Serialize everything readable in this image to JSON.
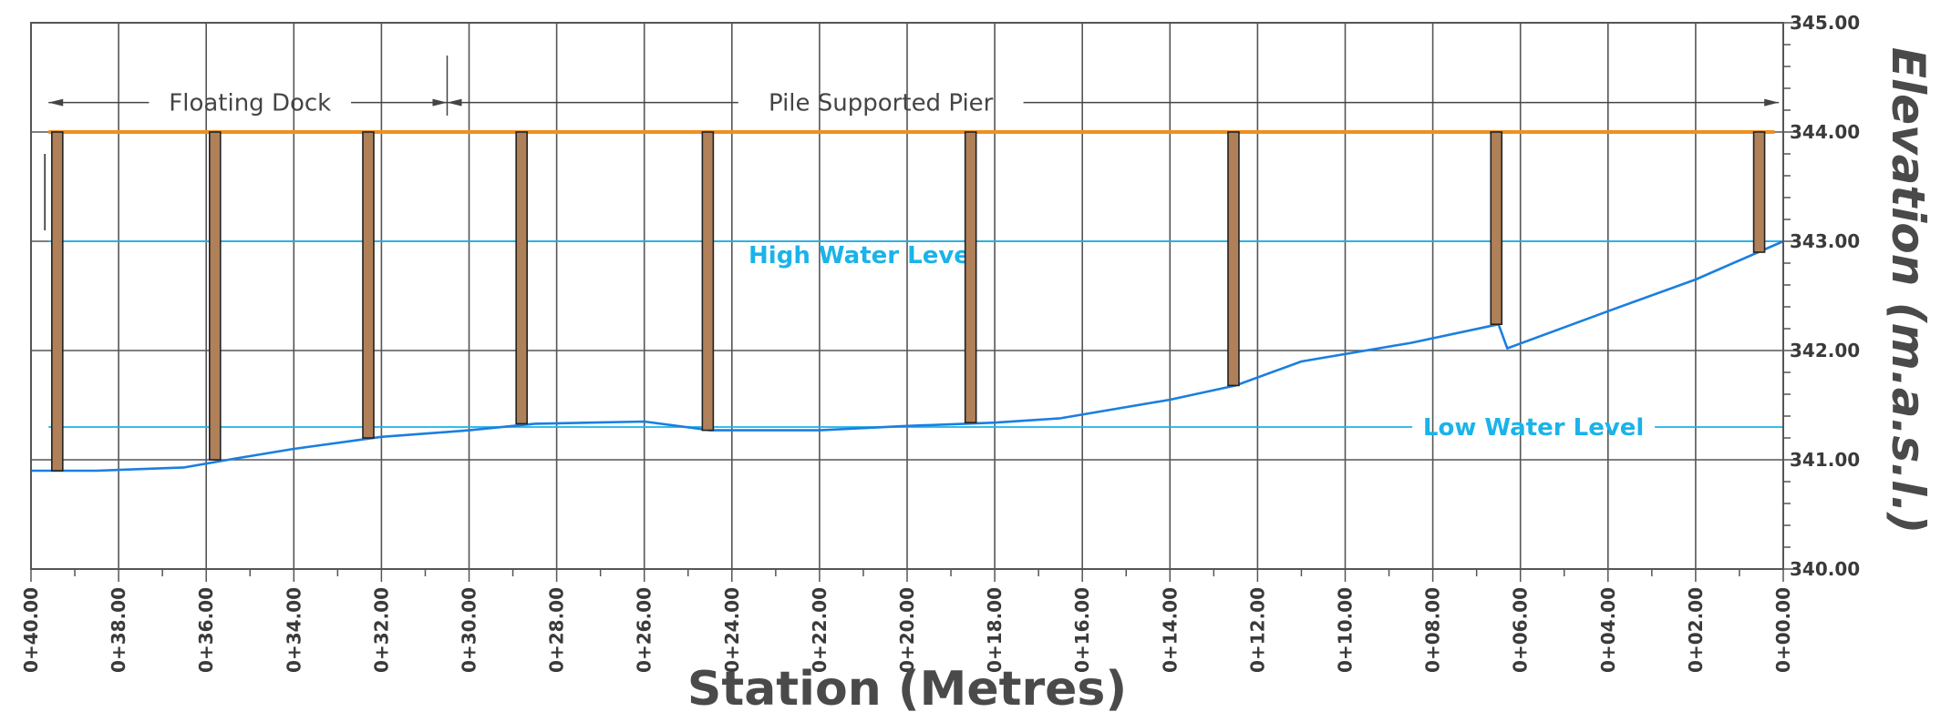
{
  "chart_data": {
    "type": "line",
    "xlabel": "Station (Metres)",
    "ylabel": "Elevation (m.a.s.l.)",
    "xlim": [
      40,
      0
    ],
    "ylim": [
      340,
      345
    ],
    "x_ticks": [
      40,
      38,
      36,
      34,
      32,
      30,
      28,
      26,
      24,
      22,
      20,
      18,
      16,
      14,
      12,
      10,
      8,
      6,
      4,
      2,
      0
    ],
    "x_tick_labels": [
      "0+40.00",
      "0+38.00",
      "0+36.00",
      "0+34.00",
      "0+32.00",
      "0+30.00",
      "0+28.00",
      "0+26.00",
      "0+24.00",
      "0+22.00",
      "0+20.00",
      "0+18.00",
      "0+16.00",
      "0+14.00",
      "0+12.00",
      "0+10.00",
      "0+08.00",
      "0+06.00",
      "0+04.00",
      "0+02.00",
      "0+00.00"
    ],
    "y_ticks": [
      340,
      341,
      342,
      343,
      344,
      345
    ],
    "y_tick_labels": [
      "340.00",
      "341.00",
      "342.00",
      "343.00",
      "344.00",
      "345.00"
    ],
    "grid": true,
    "ground_profile": {
      "color": "#1a7fe0",
      "points": [
        [
          40,
          340.9
        ],
        [
          38.5,
          340.9
        ],
        [
          36.5,
          340.93
        ],
        [
          35.5,
          341.0
        ],
        [
          34,
          341.1
        ],
        [
          32,
          341.21
        ],
        [
          30,
          341.27
        ],
        [
          28.5,
          341.33
        ],
        [
          26,
          341.35
        ],
        [
          24.5,
          341.27
        ],
        [
          22,
          341.27
        ],
        [
          20,
          341.31
        ],
        [
          18,
          341.34
        ],
        [
          16.5,
          341.38
        ],
        [
          14,
          341.55
        ],
        [
          12.5,
          341.68
        ],
        [
          11,
          341.9
        ],
        [
          8.5,
          342.07
        ],
        [
          6.5,
          342.24
        ],
        [
          6.3,
          342.02
        ],
        [
          4,
          342.36
        ],
        [
          2,
          342.65
        ],
        [
          0,
          343.0
        ]
      ]
    },
    "deck": {
      "elevation": 344.0,
      "x_start": 39.6,
      "x_end": 0.2,
      "color": "#f0901e"
    },
    "piles": [
      {
        "x": 39.4,
        "bottom": 340.9
      },
      {
        "x": 35.8,
        "bottom": 341.0
      },
      {
        "x": 32.3,
        "bottom": 341.2
      },
      {
        "x": 28.8,
        "bottom": 341.33
      },
      {
        "x": 24.55,
        "bottom": 341.27
      },
      {
        "x": 18.55,
        "bottom": 341.34
      },
      {
        "x": 12.55,
        "bottom": 341.68
      },
      {
        "x": 6.55,
        "bottom": 342.24
      },
      {
        "x": 0.55,
        "bottom": 342.9
      }
    ],
    "pile_top": 344.0,
    "pile_color": "#b08058",
    "water_levels": [
      {
        "label": "High Water Level",
        "elevation": 343.0,
        "label_x": 21,
        "color": "#1ab3ea"
      },
      {
        "label": "Low Water Level",
        "elevation": 341.3,
        "label_x": 5.7,
        "color": "#1ab3ea"
      }
    ],
    "annotations": [
      {
        "label": "Floating Dock",
        "x_start": 39.6,
        "x_end": 30.5,
        "elevation": 344.27,
        "label_x": 35
      },
      {
        "label": "Pile Supported Pier",
        "x_start": 30.5,
        "x_end": 0.1,
        "elevation": 344.27,
        "label_x": 20.6
      }
    ]
  }
}
